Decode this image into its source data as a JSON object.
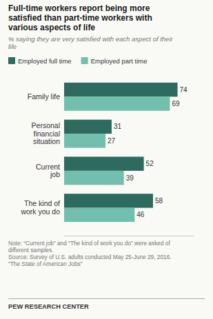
{
  "chart_data": {
    "type": "bar",
    "orientation": "horizontal",
    "title": "Full-time workers report being more\nsatisfied than part-time workers with\nvarious aspects of life",
    "subtitle": "% saying they are very satisfied with each aspect of their\nlife",
    "annotations": [
      "Note: “Current job” and “The kind of work you do” were asked of\ndifferent samples.\nSource: Survey of U.S. adults conducted May 25-June 29, 2016.\n“The State of American Jobs”",
      "PEW RESEARCH CENTER"
    ],
    "categories": [
      "Family life",
      "Personal\nfinancial\nsituation",
      "Current\njob",
      "The kind of\nwork you do"
    ],
    "series": [
      {
        "name": "Employed full time",
        "color": "#2d6b5e",
        "values": [
          74,
          31,
          52,
          58
        ]
      },
      {
        "name": "Employed part time",
        "color": "#72bfad",
        "values": [
          69,
          27,
          39,
          46
        ]
      }
    ],
    "xlim": [
      0,
      85
    ],
    "data_labels": true,
    "tick_labels": "y",
    "grid": false,
    "legend": "top"
  }
}
